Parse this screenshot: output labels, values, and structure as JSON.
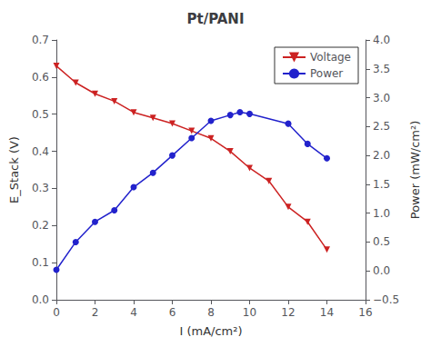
{
  "chart_data": {
    "type": "line",
    "title": "Pt/PANI",
    "xlabel": "I (mA/cm²)",
    "ylabel": "E_Stack (V)",
    "y2label": "Power (mW/cm²)",
    "xlim": [
      0,
      16
    ],
    "xticks": [
      0,
      2,
      4,
      6,
      8,
      10,
      12,
      14,
      16
    ],
    "ylim": [
      0.0,
      0.7
    ],
    "yticks": [
      {
        "value": 0.0,
        "label": "0.0"
      },
      0.1,
      0.2,
      0.3,
      0.4,
      0.5,
      0.6,
      0.7
    ],
    "y2lim": [
      -0.5,
      4.0
    ],
    "y2ticks": [
      {
        "value": -0.5,
        "label": "−0.5"
      },
      {
        "value": 0.0,
        "label": "0.0"
      },
      0.5,
      {
        "value": 1.0,
        "label": "1.0"
      },
      1.5,
      {
        "value": 2.0,
        "label": "2.0"
      },
      2.5,
      {
        "value": 3.0,
        "label": "3.0"
      },
      3.5,
      {
        "value": 4.0,
        "label": "4.0"
      }
    ],
    "grid": false,
    "legend": "upper right",
    "series": [
      {
        "name": "Voltage",
        "color": "#cc2222",
        "marker": "triangle_down",
        "axis": "y",
        "x": [
          0,
          1,
          2,
          3,
          4,
          5,
          6,
          7,
          8,
          9,
          10,
          11,
          12,
          13,
          14
        ],
        "values": [
          0.63,
          0.585,
          0.555,
          0.535,
          0.505,
          0.49,
          0.475,
          0.455,
          0.435,
          0.4,
          0.355,
          0.32,
          0.25,
          0.21,
          0.135
        ]
      },
      {
        "name": "Power",
        "color": "#2222cc",
        "marker": "circle",
        "axis": "y2",
        "x": [
          0,
          1,
          2,
          3,
          4,
          5,
          6,
          7,
          8,
          9,
          9.5,
          10,
          12,
          13,
          14
        ],
        "values": [
          0.02,
          0.5,
          0.85,
          1.05,
          1.45,
          1.7,
          2.0,
          2.3,
          2.6,
          2.7,
          2.75,
          2.72,
          2.55,
          2.2,
          1.95
        ]
      }
    ]
  }
}
